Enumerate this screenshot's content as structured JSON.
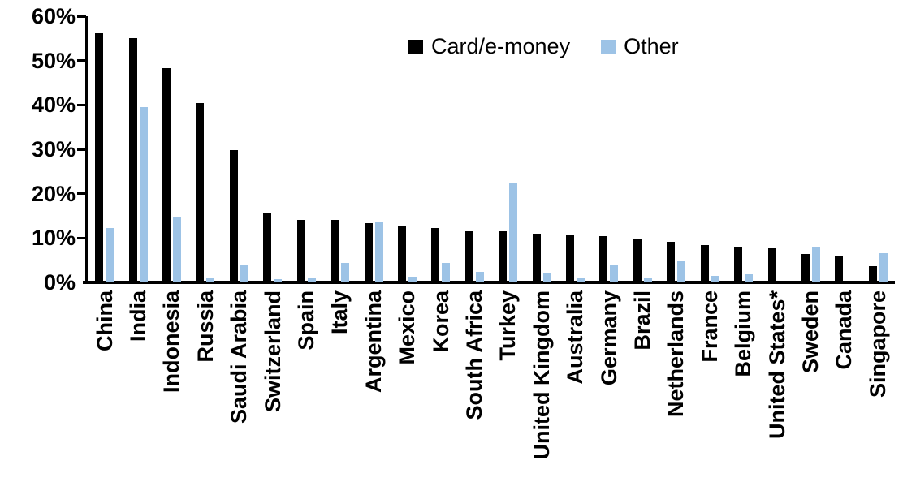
{
  "chart_data": {
    "type": "bar",
    "title": "",
    "xlabel": "",
    "ylabel": "",
    "ylim": [
      0,
      60
    ],
    "y_tick_values": [
      0,
      10,
      20,
      30,
      40,
      50,
      60
    ],
    "y_tick_labels": [
      "0%",
      "10%",
      "20%",
      "30%",
      "40%",
      "50%",
      "60%"
    ],
    "grid": false,
    "legend_position": "top-center",
    "categories": [
      "China",
      "India",
      "Indonesia",
      "Russia",
      "Saudi Arabia",
      "Switzerland",
      "Spain",
      "Italy",
      "Argentina",
      "Mexico",
      "Korea",
      "South Africa",
      "Turkey",
      "United Kingdom",
      "Australia",
      "Germany",
      "Brazil",
      "Netherlands",
      "France",
      "Belgium",
      "United States*",
      "Sweden",
      "Canada",
      "Singapore"
    ],
    "series": [
      {
        "name": "Card/e-money",
        "color": "#000000",
        "values": [
          56.2,
          55.0,
          48.3,
          40.5,
          29.8,
          15.5,
          14.0,
          14.0,
          13.3,
          12.8,
          12.2,
          11.6,
          11.5,
          11.0,
          10.8,
          10.4,
          9.9,
          9.1,
          8.5,
          7.9,
          7.7,
          6.4,
          5.8,
          3.7
        ]
      },
      {
        "name": "Other",
        "color": "#9DC3E6",
        "values": [
          12.2,
          39.6,
          14.6,
          0.9,
          3.8,
          0.7,
          0.9,
          4.4,
          13.8,
          1.2,
          4.4,
          2.4,
          22.5,
          2.2,
          0.9,
          3.8,
          1.1,
          4.7,
          1.4,
          1.9,
          0.2,
          7.9,
          0.0,
          6.5
        ]
      }
    ]
  }
}
